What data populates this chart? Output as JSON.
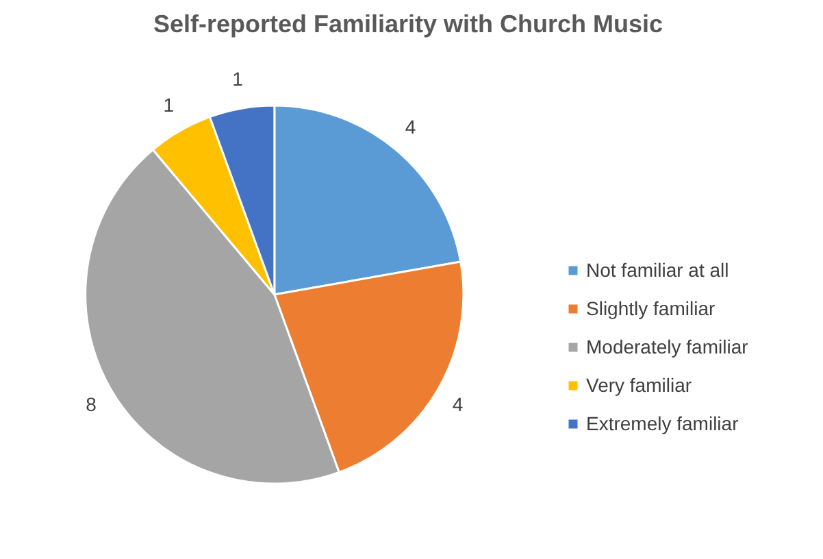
{
  "chart_data": {
    "type": "pie",
    "title": "Self-reported Familiarity  with Church Music",
    "categories": [
      "Not familiar at all",
      "Slightly familiar",
      "Moderately familiar",
      "Very familiar",
      "Extremely familiar"
    ],
    "values": [
      4,
      4,
      8,
      1,
      1
    ],
    "colors": [
      "#5b9bd5",
      "#ed7d31",
      "#a5a5a5",
      "#ffc000",
      "#4472c4"
    ],
    "data_labels": true,
    "legend": "right"
  }
}
